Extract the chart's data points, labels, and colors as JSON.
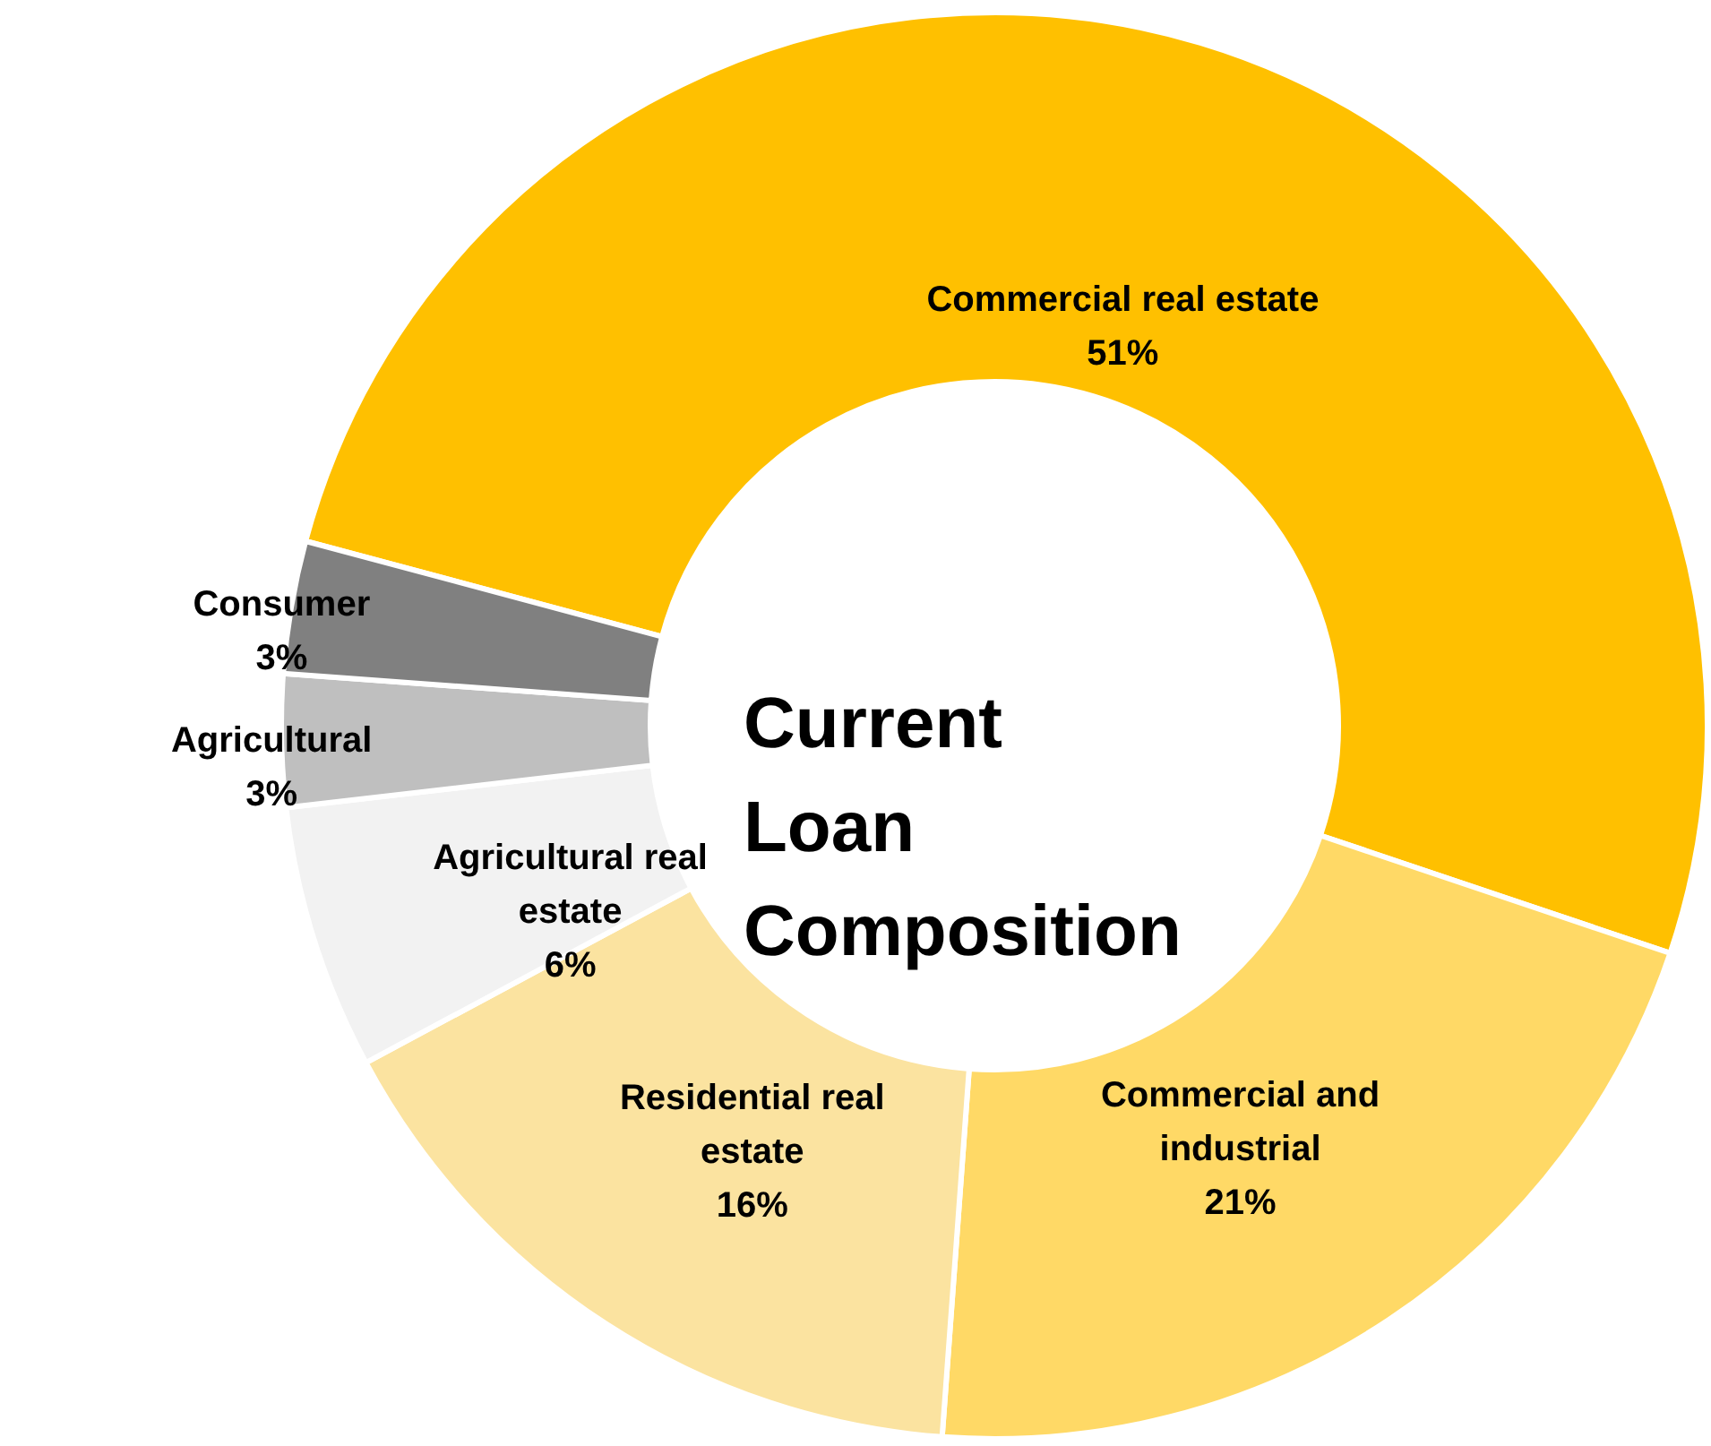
{
  "chart_data": {
    "type": "donut",
    "title": "Current Loan Composition",
    "categories": [
      "Commercial real estate",
      "Commercial and industrial",
      "Residential real estate",
      "Agricultural real estate",
      "Agricultural",
      "Consumer"
    ],
    "values": [
      51,
      21,
      16,
      6,
      3,
      3
    ],
    "colors": [
      "#ffc000",
      "#ffd966",
      "#fbe3a0",
      "#f2f2f2",
      "#bfbfbf",
      "#808080"
    ],
    "value_labels": [
      "51%",
      "21%",
      "16%",
      "6%",
      "3%",
      "3%"
    ]
  }
}
